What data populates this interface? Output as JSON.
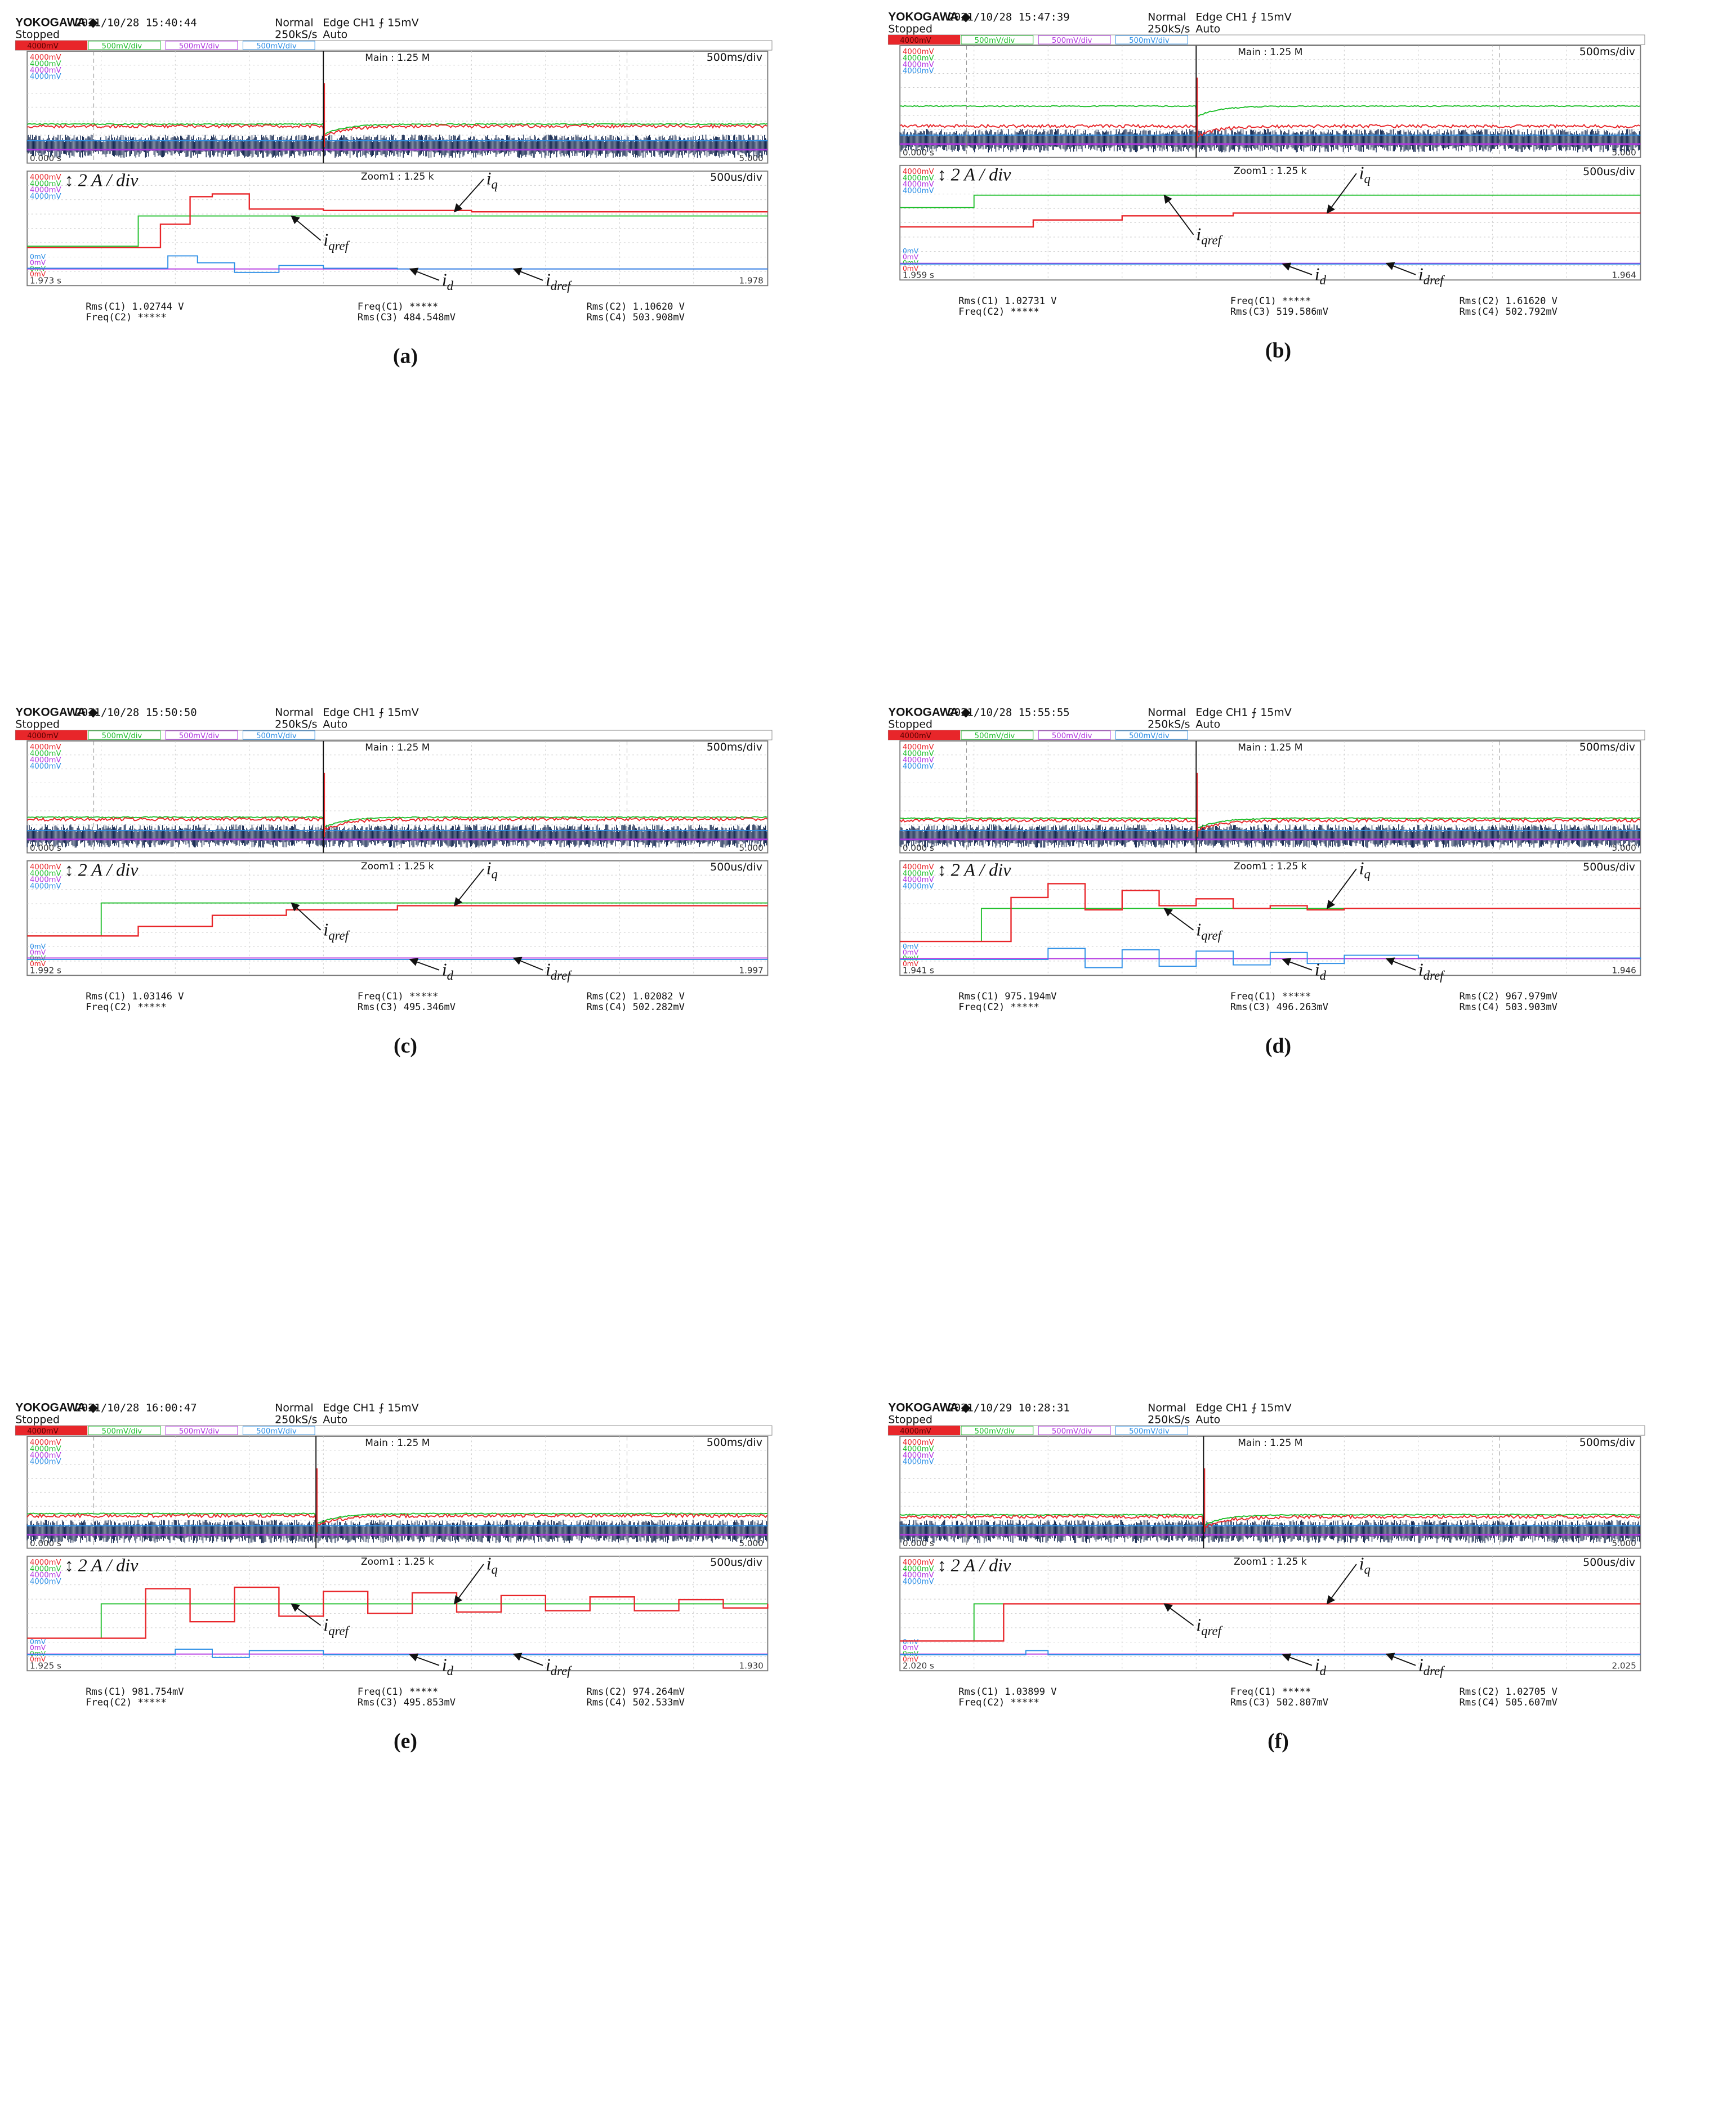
{
  "colors": {
    "ch1": "#e8262a",
    "ch2": "#1fbf2b",
    "ch3": "#b235e0",
    "ch4": "#2d8fe6",
    "noise": "#142850",
    "frame": "#7a7a7a",
    "grid": "#c8c8c8"
  },
  "common": {
    "brand": "YOKOGAWA ◆",
    "state": "Stopped",
    "mode": "Normal",
    "rate": "250kS/s",
    "trigger": "Edge CH1 ⨍ 15mV",
    "auto": "Auto",
    "ch1_scale": "4000mV",
    "ch2_scale": "500mV/div",
    "ch3_scale": "500mV/div",
    "ch4_scale": "500mV/div",
    "ch_levels": [
      "4000mV",
      "4000mV",
      "4000mV",
      "4000mV"
    ],
    "zero_levels": [
      "0mV",
      "0mV",
      "0mV",
      "0mV"
    ],
    "main_label": "Main : 1.25 M",
    "main_div": "500ms/div",
    "zoom_label": "Zoom1 : 1.25 k",
    "zoom_div": "500us/div",
    "main_start": "0.000 s",
    "main_end": "5.000",
    "scale_annotation": "2 A / div",
    "labels": {
      "iq": "q",
      "iqref": "qref",
      "id": "d",
      "idref": "dref"
    },
    "meas_keys": {
      "rms_c1": "Rms(C1)",
      "freq_c1": "Freq(C1)",
      "rms_c2": "Rms(C2)",
      "freq_c2": "Freq(C2)",
      "rms_c3": "Rms(C3)",
      "rms_c4": "Rms(C4)"
    },
    "freq_value": "*****"
  },
  "panels": [
    {
      "letter": "(a)",
      "date": "2021/10/28",
      "time": "15:40:44",
      "zoom_start": "1.973 s",
      "zoom_end": "1.978",
      "rms_c1": "1.02744 V",
      "rms_c2": "1.10620 V",
      "rms_c3": "484.548mV",
      "rms_c4": "503.908mV"
    },
    {
      "letter": "(b)",
      "date": "2021/10/28",
      "time": "15:47:39",
      "zoom_start": "1.959 s",
      "zoom_end": "1.964",
      "rms_c1": "1.02731 V",
      "rms_c2": "1.61620 V",
      "rms_c3": "519.586mV",
      "rms_c4": "502.792mV"
    },
    {
      "letter": "(c)",
      "date": "2021/10/28",
      "time": "15:50:50",
      "zoom_start": "1.992 s",
      "zoom_end": "1.997",
      "rms_c1": "1.03146 V",
      "rms_c2": "1.02082 V",
      "rms_c3": "495.346mV",
      "rms_c4": "502.282mV"
    },
    {
      "letter": "(d)",
      "date": "2021/10/28",
      "time": "15:55:55",
      "zoom_start": "1.941 s",
      "zoom_end": "1.946",
      "rms_c1": "975.194mV",
      "rms_c2": "967.979mV",
      "rms_c3": "496.263mV",
      "rms_c4": "503.903mV"
    },
    {
      "letter": "(e)",
      "date": "2021/10/28",
      "time": "16:00:47",
      "zoom_start": "1.925 s",
      "zoom_end": "1.930",
      "rms_c1": "981.754mV",
      "rms_c2": "974.264mV",
      "rms_c3": "495.853mV",
      "rms_c4": "502.533mV"
    },
    {
      "letter": "(f)",
      "date": "2021/10/29",
      "time": "10:28:31",
      "zoom_start": "2.020 s",
      "zoom_end": "2.025",
      "rms_c1": "1.03899 V",
      "rms_c2": "1.02705 V",
      "rms_c3": "502.807mV",
      "rms_c4": "505.607mV"
    }
  ],
  "chart_data": [
    {
      "type": "line",
      "panel": "(a)",
      "x_unit": "zoom divisions (500us/div)",
      "series": [
        {
          "name": "iqref",
          "x": [
            0,
            1.5,
            1.5,
            10
          ],
          "y": [
            1.7,
            1.7,
            3.9,
            3.9
          ]
        },
        {
          "name": "iq",
          "x": [
            0,
            1.5,
            1.8,
            2.2,
            2.5,
            3,
            4,
            6,
            10
          ],
          "y": [
            1.6,
            1.6,
            3.3,
            5.3,
            5.5,
            4.4,
            4.3,
            4.2,
            4.2
          ]
        },
        {
          "name": "idref",
          "x": [
            0,
            10
          ],
          "y": [
            0.05,
            0.05
          ]
        },
        {
          "name": "id",
          "x": [
            0,
            1.5,
            1.9,
            2.3,
            2.8,
            3.4,
            4,
            5,
            10
          ],
          "y": [
            0.1,
            0.1,
            1.0,
            0.5,
            -0.2,
            0.3,
            0.1,
            0.05,
            0.05
          ]
        }
      ]
    },
    {
      "type": "line",
      "panel": "(b)",
      "x_unit": "zoom divisions (500us/div)",
      "series": [
        {
          "name": "iqref",
          "x": [
            0,
            1,
            1,
            10
          ],
          "y": [
            4.1,
            4.1,
            5.0,
            5.0
          ]
        },
        {
          "name": "iq",
          "x": [
            0,
            1.4,
            1.8,
            3,
            4.5,
            10
          ],
          "y": [
            2.7,
            2.7,
            3.2,
            3.5,
            3.7,
            3.7
          ]
        },
        {
          "name": "idref",
          "x": [
            0,
            10
          ],
          "y": [
            0.05,
            0.05
          ]
        },
        {
          "name": "id",
          "x": [
            0,
            10
          ],
          "y": [
            0.0,
            0.0
          ]
        }
      ]
    },
    {
      "type": "line",
      "panel": "(c)",
      "x_unit": "zoom divisions (500us/div)",
      "series": [
        {
          "name": "iqref",
          "x": [
            0,
            1,
            1,
            10
          ],
          "y": [
            1.7,
            1.7,
            4.1,
            4.1
          ]
        },
        {
          "name": "iq",
          "x": [
            0,
            1,
            1.5,
            2.5,
            3.5,
            5,
            10
          ],
          "y": [
            1.7,
            1.7,
            2.4,
            3.2,
            3.6,
            3.9,
            3.9
          ]
        },
        {
          "name": "idref",
          "x": [
            0,
            10
          ],
          "y": [
            0.1,
            0.1
          ]
        },
        {
          "name": "id",
          "x": [
            0,
            10
          ],
          "y": [
            0.0,
            0.0
          ]
        }
      ]
    },
    {
      "type": "line",
      "panel": "(d)",
      "x_unit": "zoom divisions (500us/div)",
      "series": [
        {
          "name": "iqref",
          "x": [
            0,
            1.1,
            1.1,
            10
          ],
          "y": [
            1.3,
            1.3,
            3.7,
            3.7
          ]
        },
        {
          "name": "iq",
          "x": [
            0,
            1.3,
            1.5,
            2,
            2.5,
            3,
            3.5,
            4,
            4.5,
            5,
            5.5,
            6,
            10
          ],
          "y": [
            1.3,
            1.3,
            4.5,
            5.5,
            3.6,
            5.0,
            3.9,
            4.4,
            3.7,
            3.9,
            3.6,
            3.7,
            3.7
          ]
        },
        {
          "name": "idref",
          "x": [
            0,
            10
          ],
          "y": [
            0.05,
            0.05
          ]
        },
        {
          "name": "id",
          "x": [
            0,
            1.5,
            2,
            2.5,
            3,
            3.5,
            4,
            4.5,
            5,
            5.5,
            6,
            7,
            10
          ],
          "y": [
            0,
            0,
            0.8,
            -0.6,
            0.7,
            -0.5,
            0.6,
            -0.4,
            0.5,
            -0.3,
            0.3,
            0.1,
            0.0
          ]
        }
      ]
    },
    {
      "type": "line",
      "panel": "(e)",
      "x_unit": "zoom divisions (500us/div)",
      "series": [
        {
          "name": "iqref",
          "x": [
            0,
            1,
            1,
            10
          ],
          "y": [
            1.2,
            1.2,
            3.7,
            3.7
          ]
        },
        {
          "name": "iq",
          "x": [
            0,
            1,
            1.6,
            2.2,
            2.8,
            3.4,
            4,
            4.6,
            5.2,
            5.8,
            6.4,
            7,
            7.6,
            8.2,
            8.8,
            9.4,
            10
          ],
          "y": [
            1.2,
            1.2,
            4.8,
            2.4,
            4.9,
            2.8,
            4.6,
            3.0,
            4.5,
            3.1,
            4.3,
            3.2,
            4.2,
            3.2,
            4.0,
            3.4,
            3.7
          ]
        },
        {
          "name": "idref",
          "x": [
            0,
            10
          ],
          "y": [
            0.05,
            0.05
          ]
        },
        {
          "name": "id",
          "x": [
            0,
            1.5,
            2,
            2.5,
            3,
            4,
            10
          ],
          "y": [
            0,
            0,
            0.4,
            -0.2,
            0.3,
            0.0,
            0.0
          ]
        }
      ]
    },
    {
      "type": "line",
      "panel": "(f)",
      "x_unit": "zoom divisions (500us/div)",
      "series": [
        {
          "name": "iqref",
          "x": [
            0,
            1,
            1,
            10
          ],
          "y": [
            1.0,
            1.0,
            3.7,
            3.7
          ]
        },
        {
          "name": "iq",
          "x": [
            0,
            1.4,
            1.4,
            10
          ],
          "y": [
            1.0,
            1.0,
            3.7,
            3.7
          ]
        },
        {
          "name": "idref",
          "x": [
            0,
            10
          ],
          "y": [
            0.05,
            0.05
          ]
        },
        {
          "name": "id",
          "x": [
            0,
            1.4,
            1.7,
            2,
            10
          ],
          "y": [
            0,
            0,
            0.3,
            0.0,
            0.0
          ]
        }
      ]
    }
  ]
}
